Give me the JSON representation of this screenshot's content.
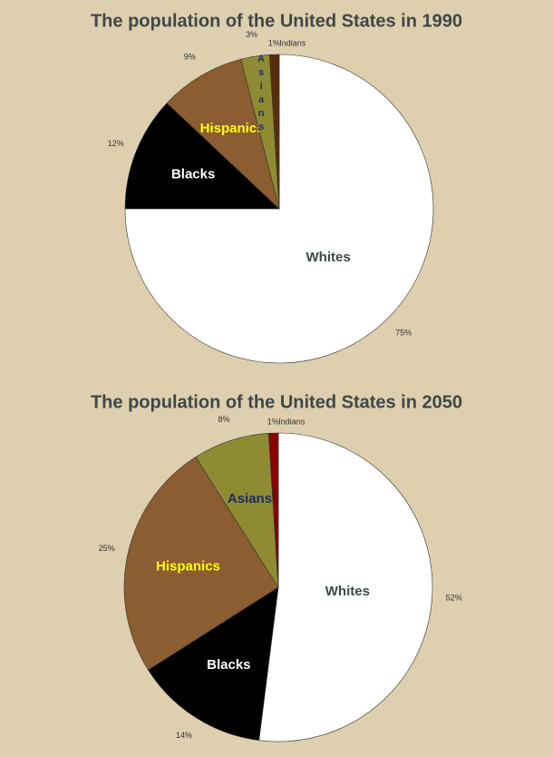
{
  "chart_data": [
    {
      "type": "pie",
      "title": "The population of the United States in 1990",
      "categories": [
        "Whites",
        "Blacks",
        "Hispanics",
        "Asians",
        "Indians"
      ],
      "values": [
        75,
        12,
        9,
        3,
        1
      ],
      "value_labels": [
        "75%",
        "12%",
        "9%",
        "3%",
        "1%"
      ],
      "colors": [
        "#ffffff",
        "#000000",
        "#8c5d30",
        "#8e8b33",
        "#5a2e0a"
      ],
      "label_colors": [
        "#3d4848",
        "#ffffff",
        "#ffff00",
        "#1f2a6b",
        "#333333"
      ]
    },
    {
      "type": "pie",
      "title": "The population of the United States in 2050",
      "categories": [
        "Whites",
        "Blacks",
        "Hispanics",
        "Asians",
        "Indians"
      ],
      "values": [
        52,
        14,
        25,
        8,
        1
      ],
      "value_labels": [
        "52%",
        "14%",
        "25%",
        "8%",
        "1%"
      ],
      "colors": [
        "#ffffff",
        "#000000",
        "#8c5d30",
        "#8e8b33",
        "#8b0000"
      ],
      "label_colors": [
        "#3d4848",
        "#ffffff",
        "#ffff00",
        "#1f2a6b",
        "#333333"
      ]
    }
  ]
}
